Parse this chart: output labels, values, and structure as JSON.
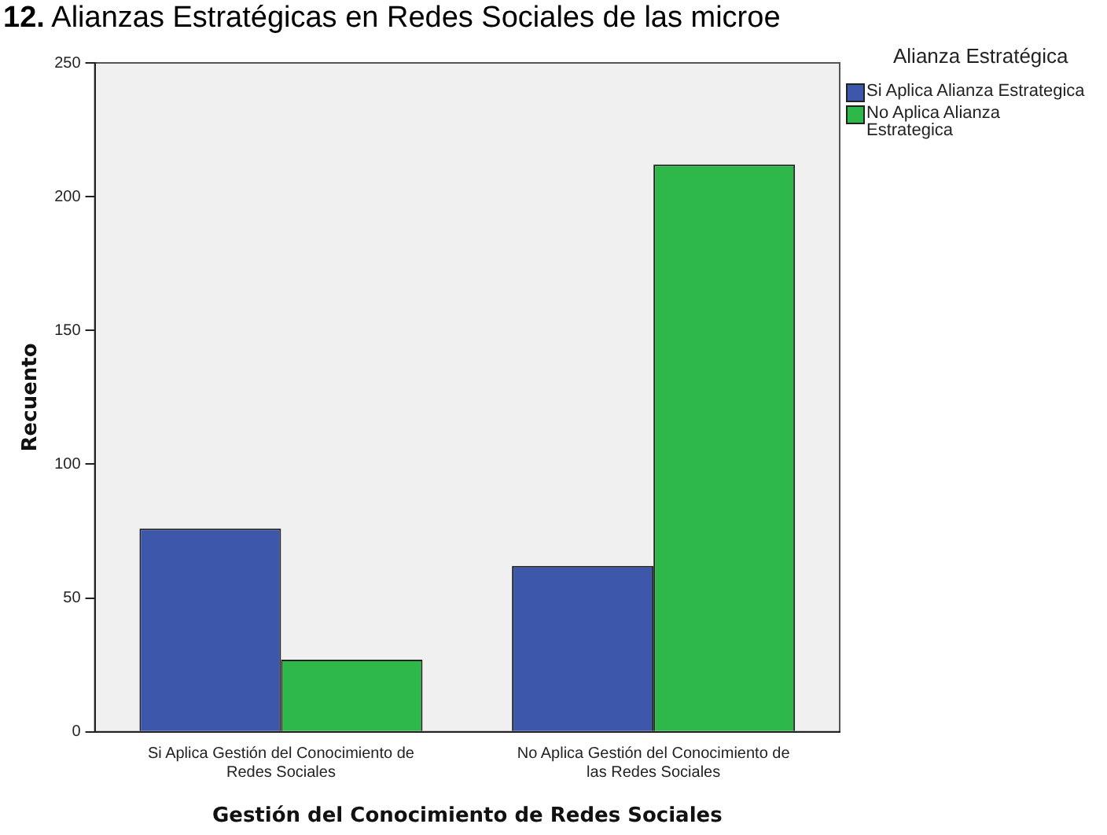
{
  "chart_data": {
    "type": "bar",
    "title": "12. Alianzas Estratégicas en Redes Sociales de las microe",
    "xlabel": "Gestión del Conocimiento de Redes Sociales",
    "ylabel": "Recuento",
    "legend_title": "Alianza Estratégica",
    "categories": [
      "Si Aplica Gestión del Conocimiento de Redes Sociales",
      "No Aplica Gestión del Conocimiento de las Redes Sociales"
    ],
    "series": [
      {
        "name": "Si Aplica Alianza Estrategica",
        "color": "#3d58ab",
        "values": [
          76,
          62
        ]
      },
      {
        "name": "No Aplica Alianza Estrategica",
        "color": "#2fb84a",
        "values": [
          27,
          212
        ]
      }
    ],
    "ylim": [
      0,
      250
    ],
    "yticks": [
      0,
      50,
      100,
      150,
      200,
      250
    ],
    "grid": false,
    "legend": "right"
  }
}
